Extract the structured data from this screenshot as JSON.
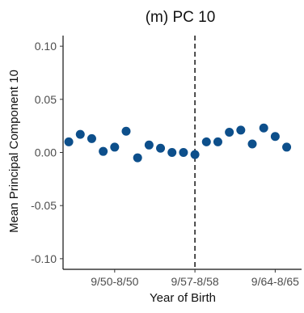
{
  "chart_data": {
    "type": "scatter",
    "title": "(m) PC 10",
    "xlabel": "Year of Birth",
    "ylabel": "Mean Principal Component 10",
    "ylim": [
      -0.11,
      0.11
    ],
    "y_ticks": [
      0.1,
      0.05,
      0.0,
      -0.05,
      -0.1
    ],
    "y_tick_labels": [
      "0.10",
      "0.05",
      "0.00",
      "-0.05",
      "-0.10"
    ],
    "x_ticks": [
      4,
      11,
      18
    ],
    "x_tick_labels": [
      "9/50-8/50",
      "9/57-8/58",
      "9/64-8/65"
    ],
    "reference_line_x": 11,
    "reference_line_style": "dashed",
    "point_color": "#0d4f8b",
    "grid": false,
    "points": [
      {
        "x": 0,
        "y": 0.01
      },
      {
        "x": 1,
        "y": 0.017
      },
      {
        "x": 2,
        "y": 0.013
      },
      {
        "x": 3,
        "y": 0.001
      },
      {
        "x": 4,
        "y": 0.005
      },
      {
        "x": 5,
        "y": 0.02
      },
      {
        "x": 6,
        "y": -0.005
      },
      {
        "x": 7,
        "y": 0.007
      },
      {
        "x": 8,
        "y": 0.004
      },
      {
        "x": 9,
        "y": 0.0
      },
      {
        "x": 10,
        "y": 0.0
      },
      {
        "x": 11,
        "y": -0.002
      },
      {
        "x": 12,
        "y": 0.01
      },
      {
        "x": 13,
        "y": 0.01
      },
      {
        "x": 14,
        "y": 0.019
      },
      {
        "x": 15,
        "y": 0.021
      },
      {
        "x": 16,
        "y": 0.008
      },
      {
        "x": 17,
        "y": 0.023
      },
      {
        "x": 18,
        "y": 0.015
      },
      {
        "x": 19,
        "y": 0.005
      }
    ]
  }
}
